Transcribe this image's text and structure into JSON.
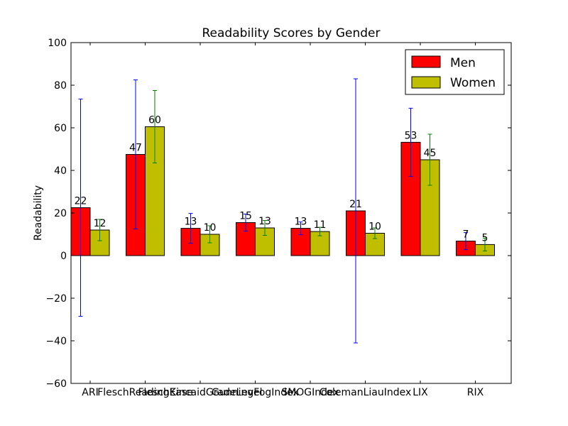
{
  "chart_data": {
    "type": "bar",
    "title": "Readability Scores by Gender",
    "xlabel": "",
    "ylabel": "Readability",
    "ylim": [
      -60,
      100
    ],
    "yticks": [
      -60,
      -40,
      -20,
      0,
      20,
      40,
      60,
      80,
      100
    ],
    "ytick_labels": [
      "−60",
      "−40",
      "−20",
      "0",
      "20",
      "40",
      "60",
      "80",
      "100"
    ],
    "categories": [
      "ARI",
      "FleschReadingEase",
      "FleschKincaidGradeLevel",
      "GunningFogIndex",
      "SMOGIndex",
      "ColemanLiauIndex",
      "LIX",
      "RIX"
    ],
    "legend_position": "top-right",
    "grid": false,
    "series": [
      {
        "name": "Men",
        "color": "#ff0000",
        "error_color": "#0000ff",
        "values": [
          22.5,
          47.5,
          12.8,
          15.5,
          12.8,
          21.0,
          53.2,
          6.8
        ],
        "errors": [
          51,
          35,
          7,
          4,
          3,
          62,
          16,
          4
        ],
        "value_labels": [
          "22",
          "47",
          "13",
          "15",
          "13",
          "21",
          "53",
          "7"
        ]
      },
      {
        "name": "Women",
        "color": "#bfbf00",
        "error_color": "#008000",
        "values": [
          12.0,
          60.5,
          10.0,
          13.0,
          11.3,
          10.5,
          45.0,
          5.2
        ],
        "errors": [
          5,
          17,
          4,
          3.5,
          2,
          2.5,
          12,
          3
        ],
        "value_labels": [
          "12",
          "60",
          "10",
          "13",
          "11",
          "10",
          "45",
          "5"
        ]
      }
    ]
  }
}
